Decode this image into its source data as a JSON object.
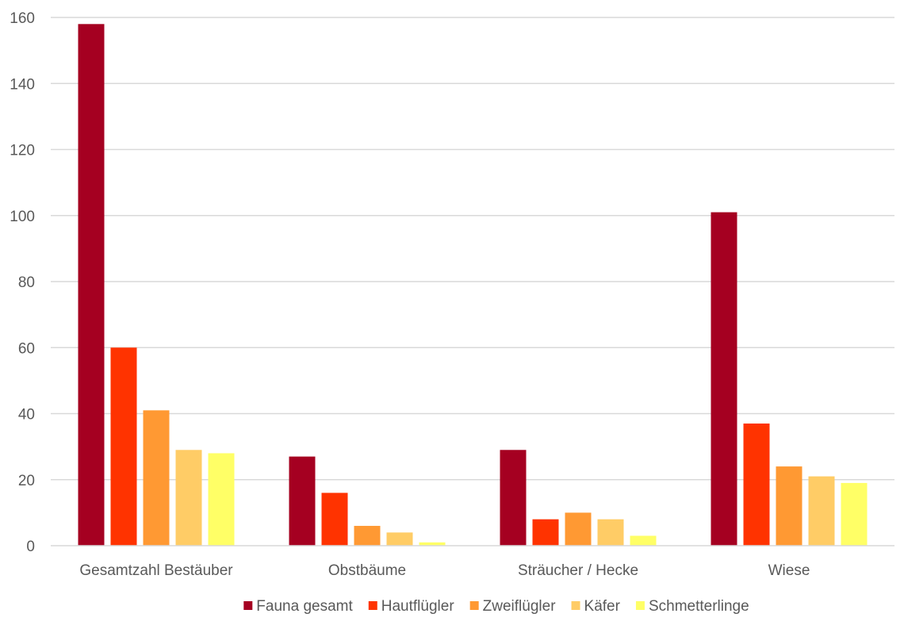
{
  "chart_data": {
    "type": "bar",
    "categories": [
      "Gesamtzahl Bestäuber",
      "Obstbäume",
      "Sträucher / Hecke",
      "Wiese"
    ],
    "series": [
      {
        "name": "Fauna gesamt",
        "color": "#A50021",
        "values": [
          158,
          27,
          29,
          101
        ]
      },
      {
        "name": "Hautflügler",
        "color": "#FF3300",
        "values": [
          60,
          16,
          8,
          37
        ]
      },
      {
        "name": "Zweiflügler",
        "color": "#FF9933",
        "values": [
          41,
          6,
          10,
          24
        ]
      },
      {
        "name": "Käfer",
        "color": "#FFCC66",
        "values": [
          29,
          4,
          8,
          21
        ]
      },
      {
        "name": "Schmetterlinge",
        "color": "#FFFF66",
        "values": [
          28,
          1,
          3,
          19
        ]
      }
    ],
    "ylim": [
      0,
      160
    ],
    "yticks": [
      0,
      20,
      40,
      60,
      80,
      100,
      120,
      140,
      160
    ],
    "grid": true,
    "legend_position": "bottom",
    "gridline_color": "#D9D9D9",
    "text_color": "#595959"
  }
}
